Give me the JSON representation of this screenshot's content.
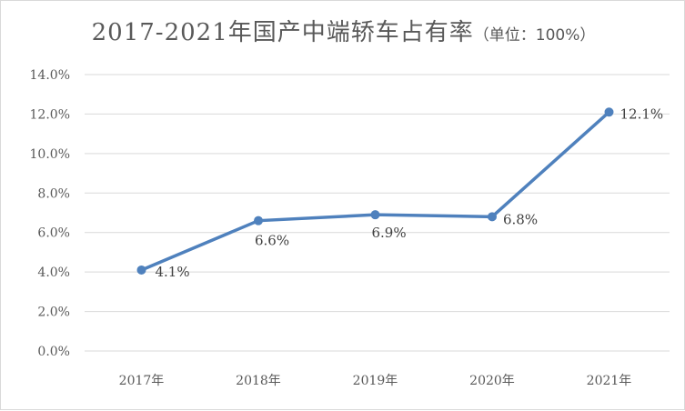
{
  "chart_data": {
    "type": "line",
    "title_main": "2017-2021年国产中端轿车占有率",
    "title_unit": "（单位：100%）",
    "categories": [
      "2017年",
      "2018年",
      "2019年",
      "2020年",
      "2021年"
    ],
    "y_ticks": [
      "0.0%",
      "2.0%",
      "4.0%",
      "6.0%",
      "8.0%",
      "10.0%",
      "12.0%",
      "14.0%"
    ],
    "ylim": [
      0,
      14
    ],
    "grid": true,
    "series": [
      {
        "values": [
          4.1,
          6.6,
          6.9,
          6.8,
          12.1
        ],
        "labels": [
          "4.1%",
          "6.6%",
          "6.9%",
          "6.8%",
          "12.1%"
        ],
        "color": "#4f81bd"
      }
    ],
    "gridline_color": "#d9d9d9",
    "text_color": "#595959"
  }
}
